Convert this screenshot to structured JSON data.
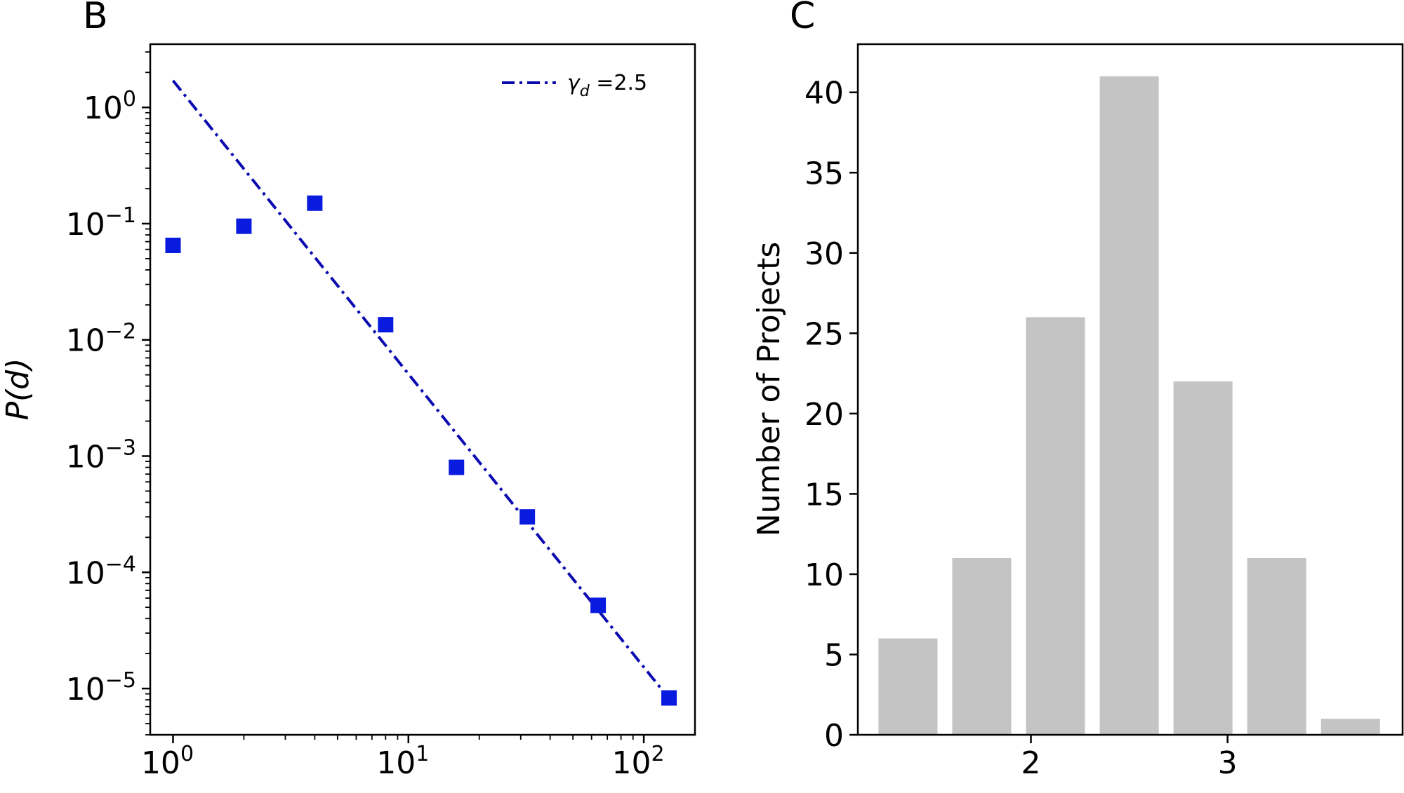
{
  "chart_data": [
    {
      "panel_label": "B",
      "type": "scatter",
      "xscale": "log",
      "yscale": "log",
      "xlim": [
        0.8,
        165
      ],
      "ylim": [
        4e-06,
        3.5
      ],
      "xticks": [
        1,
        10,
        100
      ],
      "xtick_labels": [
        {
          "base": "10",
          "exp": "0"
        },
        {
          "base": "10",
          "exp": "1"
        },
        {
          "base": "10",
          "exp": "2"
        }
      ],
      "yticks": [
        1,
        0.1,
        0.01,
        0.001,
        0.0001,
        1e-05
      ],
      "ytick_labels": [
        {
          "base": "10",
          "exp": "0"
        },
        {
          "base": "10",
          "exp": "−1"
        },
        {
          "base": "10",
          "exp": "−2"
        },
        {
          "base": "10",
          "exp": "−3"
        },
        {
          "base": "10",
          "exp": "−4"
        },
        {
          "base": "10",
          "exp": "−5"
        }
      ],
      "xlabel": "",
      "ylabel": "P(d)",
      "grid": false,
      "series": [
        {
          "marker": "square",
          "color": "#0a1be0",
          "x": [
            1,
            2,
            4,
            8,
            16,
            32,
            64,
            128
          ],
          "y": [
            0.065,
            0.095,
            0.15,
            0.0135,
            0.0008,
            0.0003,
            5.2e-05,
            8.3e-06
          ]
        }
      ],
      "fit_line": {
        "style": "dash-dot",
        "color": "#0a0ab0",
        "x": [
          1,
          128
        ],
        "y": [
          1.7,
          8.2e-06
        ],
        "legend_symbol": "γ",
        "legend_subscript": "d",
        "legend_value": " =2.5"
      },
      "legend_position": "top-right"
    },
    {
      "panel_label": "C",
      "type": "bar",
      "categories": [
        1.375,
        1.75,
        2.125,
        2.5,
        2.875,
        3.25,
        3.625
      ],
      "values": [
        6,
        11,
        26,
        41,
        22,
        11,
        1
      ],
      "bar_color": "#c4c4c4",
      "xlim": [
        1.12,
        3.89
      ],
      "ylim": [
        0,
        43
      ],
      "xticks": [
        2,
        3
      ],
      "xtick_labels": [
        "2",
        "3"
      ],
      "yticks": [
        0,
        5,
        10,
        15,
        20,
        25,
        30,
        35,
        40
      ],
      "ytick_labels": [
        "0",
        "5",
        "10",
        "15",
        "20",
        "25",
        "30",
        "35",
        "40"
      ],
      "xlabel": "",
      "ylabel": "Number of Projects",
      "grid": false
    }
  ]
}
